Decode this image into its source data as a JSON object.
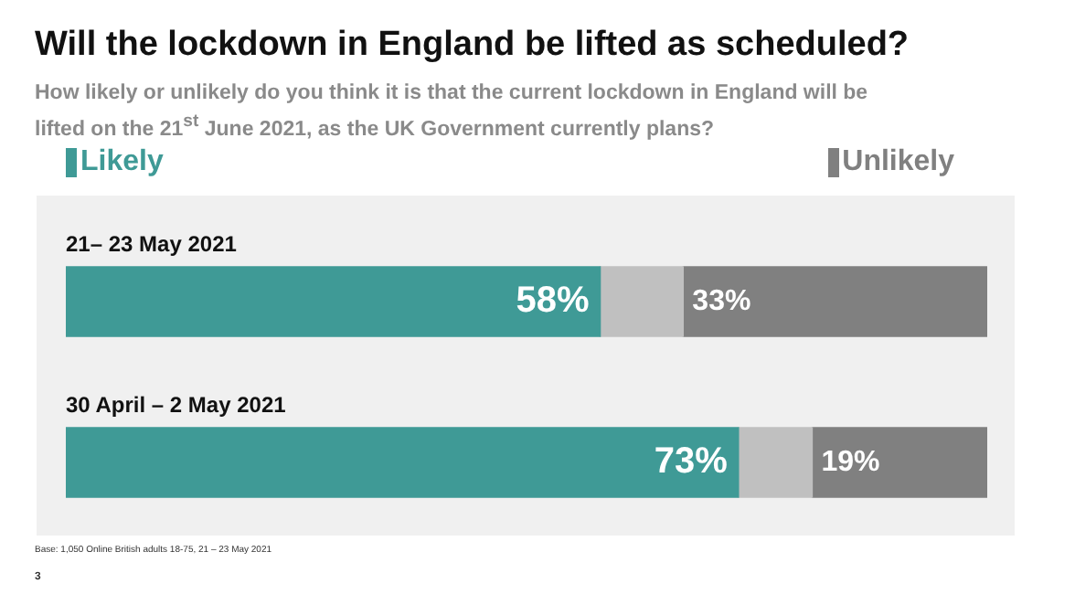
{
  "chart_data": {
    "type": "bar",
    "orientation": "horizontal",
    "stacked": true,
    "title": "Will the lockdown in England be lifted as scheduled?",
    "subtitle": "How likely or unlikely do you think it is that the current lockdown in England will be lifted on the 21$^{st}$ June 2021, as the UK Government currently plans?",
    "categories": [
      "21– 23 May 2021",
      "30 April – 2 May 2021"
    ],
    "series": [
      {
        "name": "Likely",
        "color": "#3f9a96",
        "values": [
          58,
          73
        ],
        "value_labels": [
          "58%",
          "73%"
        ]
      },
      {
        "color": "#c0c0c0",
        "values": [
          9,
          8
        ]
      },
      {
        "name": "Unlikely",
        "color": "#808080",
        "values": [
          33,
          19
        ],
        "value_labels": [
          "33%",
          "19%"
        ]
      }
    ],
    "xlim": [
      0,
      100
    ],
    "legend": "top",
    "annotations": [
      "Base: 1,050 Online British adults 18-75,  21 – 23 May 2021",
      "3"
    ]
  }
}
